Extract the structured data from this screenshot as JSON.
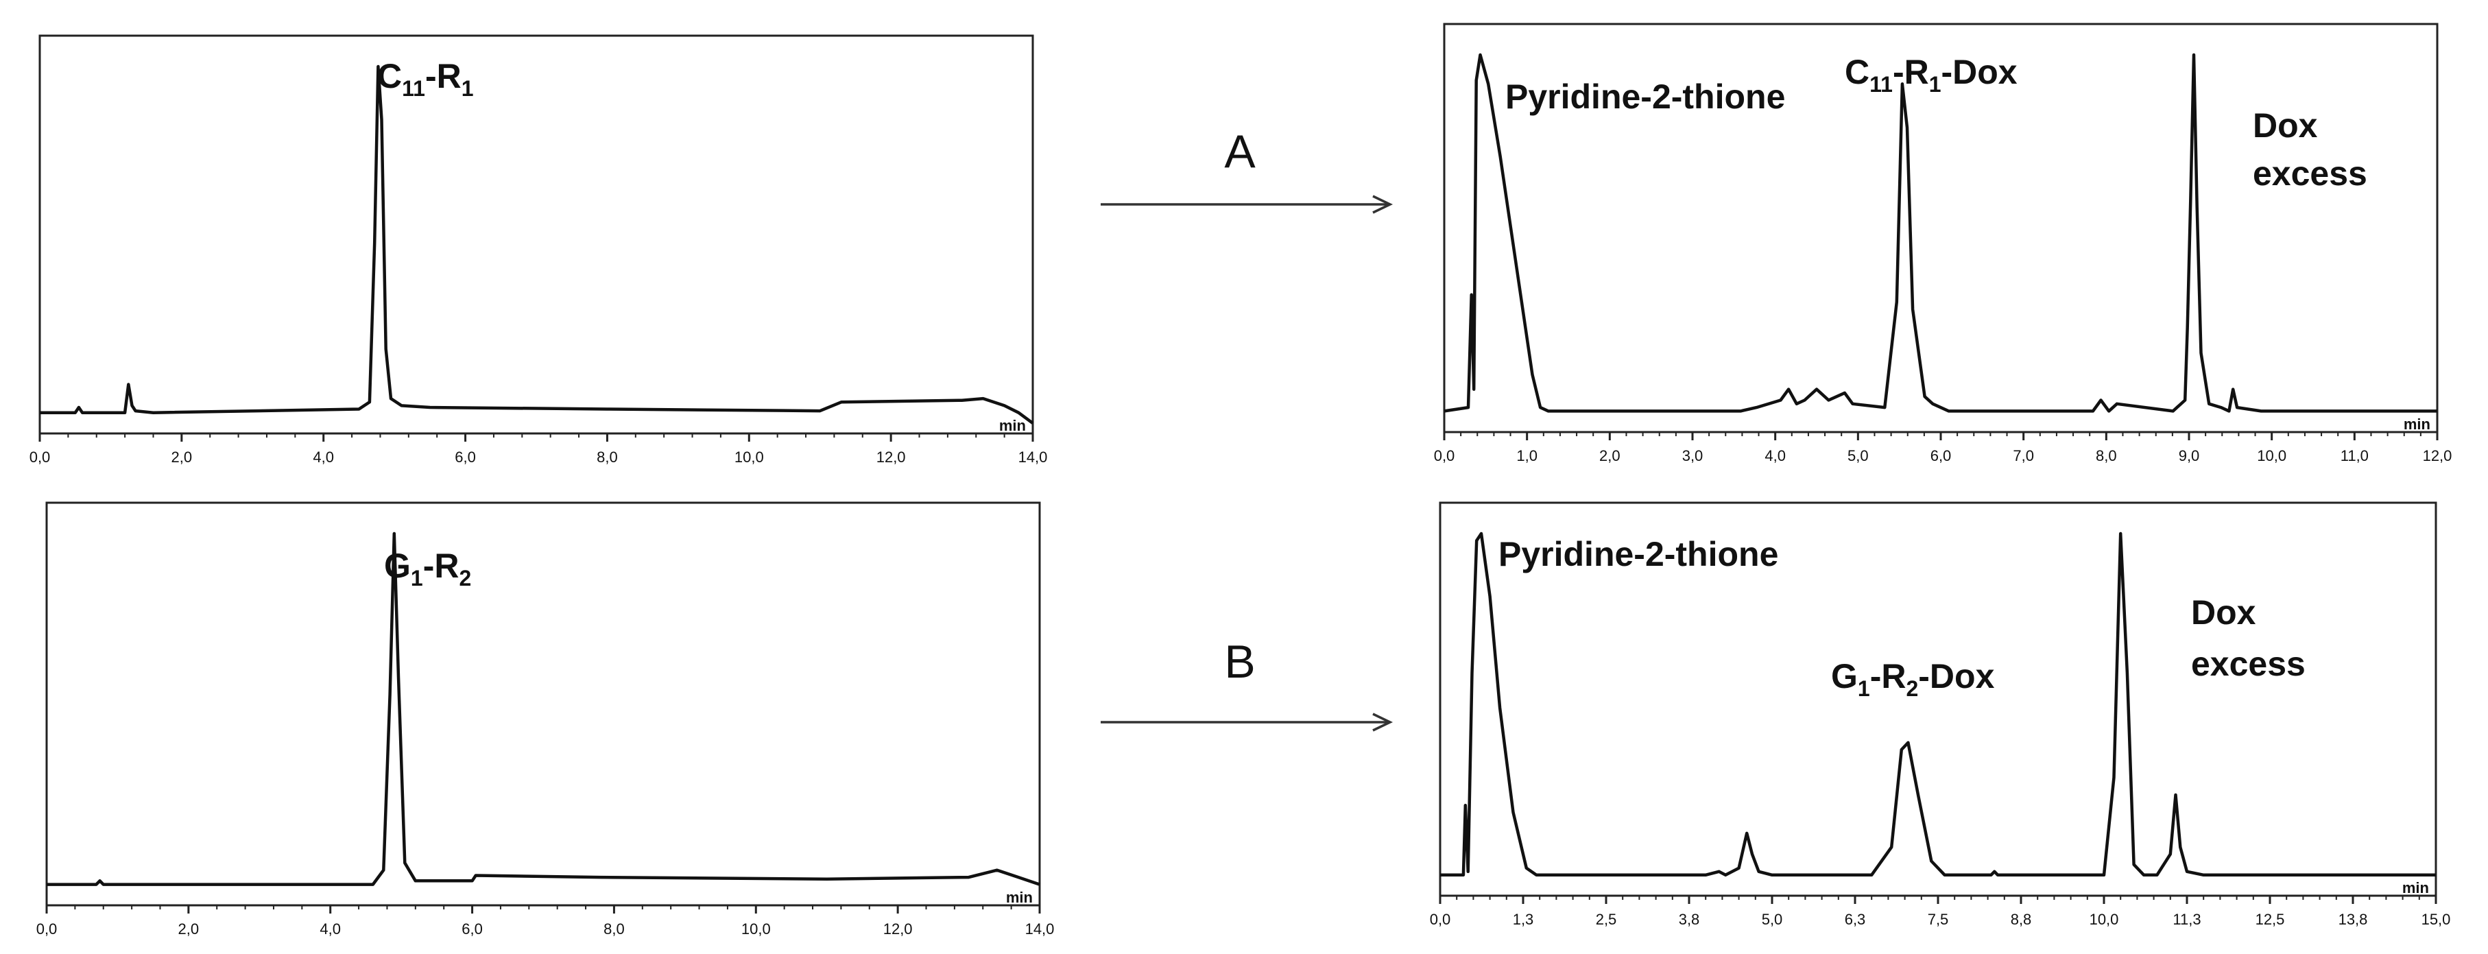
{
  "arrows": [
    {
      "label": "A"
    },
    {
      "label": "B"
    }
  ],
  "chart_data": [
    {
      "type": "line",
      "id": "top-left",
      "xlabel": "min",
      "xlim": [
        0,
        14
      ],
      "ylim": [
        0,
        1
      ],
      "xticks": [
        "0,0",
        "2,0",
        "4,0",
        "6,0",
        "8,0",
        "10,0",
        "12,0",
        "14,0"
      ],
      "annotations": [
        {
          "main": "C",
          "sub": "11",
          "main2": "-R",
          "sub2": "1",
          "tail": "",
          "x": 4.8
        }
      ],
      "series": [
        {
          "x": [
            0,
            0.5,
            0.55,
            0.6,
            1.2,
            1.25,
            1.3,
            1.35,
            1.6,
            4.5,
            4.65,
            4.72,
            4.77,
            4.82,
            4.88,
            4.95,
            5.1,
            5.5,
            8,
            11,
            11.3,
            13.0,
            13.3,
            13.6,
            13.8,
            14.0
          ],
          "y": [
            0.02,
            0.02,
            0.035,
            0.02,
            0.02,
            0.1,
            0.04,
            0.025,
            0.02,
            0.03,
            0.05,
            0.5,
            1.0,
            0.85,
            0.2,
            0.06,
            0.04,
            0.035,
            0.03,
            0.025,
            0.05,
            0.055,
            0.06,
            0.04,
            0.02,
            -0.01
          ]
        }
      ]
    },
    {
      "type": "line",
      "id": "top-right",
      "xlabel": "min",
      "xlim": [
        0,
        12.4
      ],
      "ylim": [
        0,
        1
      ],
      "xticks": [
        "0,0",
        "1,0",
        "2,0",
        "3,0",
        "4,0",
        "5,0",
        "6,0",
        "7,0",
        "8,0",
        "9,0",
        "10,0",
        "11,0",
        "12,0"
      ],
      "annotations": [
        {
          "main": "Pyridine-2-thione",
          "sub": "",
          "main2": "",
          "sub2": "",
          "tail": "",
          "x": 0.7
        },
        {
          "main": "C",
          "sub": "11",
          "main2": "-R",
          "sub2": "1",
          "tail": "-Dox",
          "x": 5.7
        },
        {
          "main": "Dox",
          "sub": "",
          "main2": "",
          "sub2": "",
          "tail": "",
          "x": 9.9
        },
        {
          "main": "excess",
          "sub": "",
          "main2": "",
          "sub2": "",
          "tail": "",
          "x": 9.9
        }
      ],
      "series": [
        {
          "x": [
            0,
            0.3,
            0.34,
            0.37,
            0.4,
            0.45,
            0.55,
            0.7,
            0.9,
            1.1,
            1.2,
            1.3,
            3.7,
            3.9,
            4.2,
            4.3,
            4.4,
            4.5,
            4.65,
            4.8,
            5.0,
            5.1,
            5.5,
            5.65,
            5.72,
            5.78,
            5.85,
            6.0,
            6.1,
            6.3,
            7.0,
            8.1,
            8.2,
            8.3,
            8.4,
            9.1,
            9.25,
            9.28,
            9.32,
            9.36,
            9.4,
            9.45,
            9.55,
            9.7,
            9.8,
            9.85,
            9.9,
            10.2,
            12.4
          ],
          "y": [
            0.02,
            0.03,
            0.34,
            0.08,
            0.93,
            1.0,
            0.92,
            0.72,
            0.42,
            0.12,
            0.03,
            0.02,
            0.02,
            0.03,
            0.05,
            0.08,
            0.04,
            0.05,
            0.08,
            0.05,
            0.07,
            0.04,
            0.03,
            0.32,
            0.92,
            0.8,
            0.3,
            0.06,
            0.04,
            0.02,
            0.02,
            0.02,
            0.05,
            0.02,
            0.04,
            0.02,
            0.05,
            0.25,
            0.6,
            1.0,
            0.58,
            0.18,
            0.04,
            0.03,
            0.02,
            0.08,
            0.03,
            0.02,
            0.02
          ]
        }
      ]
    },
    {
      "type": "line",
      "id": "bottom-left",
      "xlabel": "min",
      "xlim": [
        0,
        14
      ],
      "ylim": [
        0,
        1
      ],
      "xticks": [
        "0,0",
        "2,0",
        "4,0",
        "6,0",
        "8,0",
        "10,0",
        "12,0",
        "14,0"
      ],
      "annotations": [
        {
          "main": "G",
          "sub": "1",
          "main2": "-R",
          "sub2": "2",
          "tail": "",
          "x": 4.9
        }
      ],
      "series": [
        {
          "x": [
            0,
            0.7,
            0.75,
            0.8,
            4.6,
            4.75,
            4.84,
            4.9,
            4.96,
            5.05,
            5.2,
            6.0,
            6.05,
            7.8,
            11.0,
            13.0,
            13.4,
            13.7,
            14.0
          ],
          "y": [
            0.02,
            0.02,
            0.03,
            0.02,
            0.02,
            0.06,
            0.55,
            1.0,
            0.6,
            0.08,
            0.03,
            0.03,
            0.045,
            0.04,
            0.035,
            0.04,
            0.06,
            0.04,
            0.02
          ]
        }
      ]
    },
    {
      "type": "line",
      "id": "bottom-right",
      "xlabel": "min",
      "xlim": [
        0,
        15
      ],
      "ylim": [
        0,
        1
      ],
      "xticks": [
        "0,0",
        "1,3",
        "2,5",
        "3,8",
        "5,0",
        "6,3",
        "7,5",
        "8,8",
        "10,0",
        "11,3",
        "12,5",
        "13,8",
        "15,0"
      ],
      "annotations": [
        {
          "main": "Pyridine-2-thione",
          "sub": "",
          "main2": "",
          "sub2": "",
          "tail": "",
          "x": 1.0
        },
        {
          "main": "G",
          "sub": "1",
          "main2": "-R",
          "sub2": "2",
          "tail": "-Dox",
          "x": 7.0
        },
        {
          "main": "Dox",
          "sub": "",
          "main2": "",
          "sub2": "",
          "tail": "",
          "x": 11.1
        },
        {
          "main": "excess",
          "sub": "",
          "main2": "",
          "sub2": "",
          "tail": "",
          "x": 11.1
        }
      ],
      "series": [
        {
          "x": [
            0,
            0.35,
            0.38,
            0.42,
            0.48,
            0.55,
            0.62,
            0.75,
            0.9,
            1.1,
            1.3,
            1.45,
            1.6,
            4.0,
            4.2,
            4.3,
            4.5,
            4.62,
            4.7,
            4.8,
            5.0,
            6.5,
            6.8,
            6.95,
            7.05,
            7.2,
            7.4,
            7.6,
            8.3,
            8.35,
            8.4,
            10.0,
            10.15,
            10.25,
            10.35,
            10.45,
            10.6,
            10.8,
            11.0,
            11.08,
            11.15,
            11.25,
            11.5,
            14.0,
            15.0
          ],
          "y": [
            0.02,
            0.02,
            0.22,
            0.03,
            0.6,
            0.98,
            1.0,
            0.82,
            0.5,
            0.2,
            0.04,
            0.02,
            0.02,
            0.02,
            0.03,
            0.02,
            0.04,
            0.14,
            0.08,
            0.03,
            0.02,
            0.02,
            0.1,
            0.38,
            0.4,
            0.25,
            0.06,
            0.02,
            0.02,
            0.03,
            0.02,
            0.02,
            0.3,
            1.0,
            0.6,
            0.05,
            0.02,
            0.02,
            0.08,
            0.25,
            0.1,
            0.03,
            0.02,
            0.02,
            0.02
          ]
        }
      ]
    }
  ]
}
